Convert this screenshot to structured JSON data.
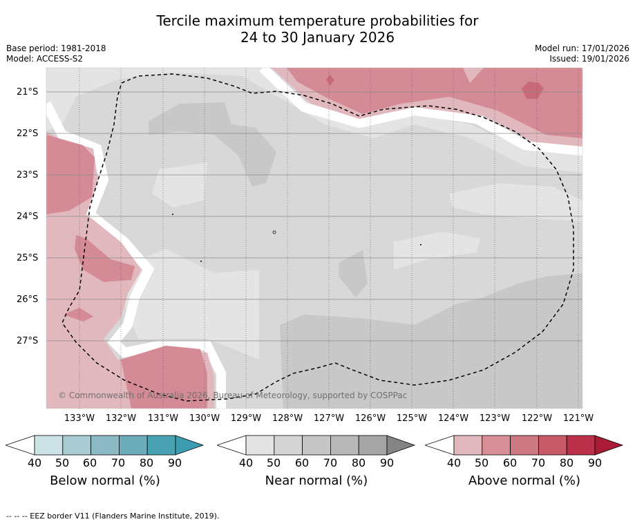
{
  "title_line1": "Tercile maximum temperature probabilities for",
  "title_line2": "24 to 30 January 2026",
  "base_period": "Base period: 1981-2018",
  "model": "Model: ACCESS-S2",
  "model_run": "Model run: 17/01/2026",
  "issued": "Issued: 19/01/2026",
  "copyright": "© Commonwealth of Australia 2026, Bureau of Meteorology, supported by COSPPac",
  "footer": "--  --  -- EEZ border V11 (Flanders Marine Institute, 2019).",
  "lat_labels": [
    "21°S",
    "22°S",
    "23°S",
    "24°S",
    "25°S",
    "26°S",
    "27°S"
  ],
  "lon_labels": [
    "133°W",
    "132°W",
    "131°W",
    "130°W",
    "129°W",
    "128°W",
    "127°W",
    "126°W",
    "125°W",
    "124°W",
    "123°W",
    "122°W",
    "121°W"
  ],
  "colorbars": [
    {
      "name": "below",
      "title": "Below normal (%)",
      "ticks": [
        "40",
        "50",
        "60",
        "70",
        "80",
        "90"
      ],
      "colors": [
        "#ffffff",
        "#cbe2e7",
        "#a8cbd2",
        "#8bbac4",
        "#6cacb9",
        "#4aa3b3",
        "#3e9cb0"
      ]
    },
    {
      "name": "near",
      "title": "Near normal (%)",
      "ticks": [
        "40",
        "50",
        "60",
        "70",
        "80",
        "90"
      ],
      "colors": [
        "#ffffff",
        "#e4e4e4",
        "#d5d5d5",
        "#c6c6c6",
        "#b8b8b8",
        "#a5a5a5",
        "#848484"
      ]
    },
    {
      "name": "above",
      "title": "Above normal (%)",
      "ticks": [
        "40",
        "50",
        "60",
        "70",
        "80",
        "90"
      ],
      "colors": [
        "#ffffff",
        "#e1b8be",
        "#d78e97",
        "#cd7781",
        "#c65a67",
        "#bc2f48",
        "#a91b37"
      ]
    }
  ],
  "map_colors": {
    "near_40": "#e4e4e4",
    "near_50": "#d8d8d8",
    "near_60": "#c8c8c8",
    "above_40": "#e1b8be",
    "above_50": "#d48b95",
    "above_60": "#c86a77",
    "gap": "#ffffff",
    "eez": "#000000"
  }
}
